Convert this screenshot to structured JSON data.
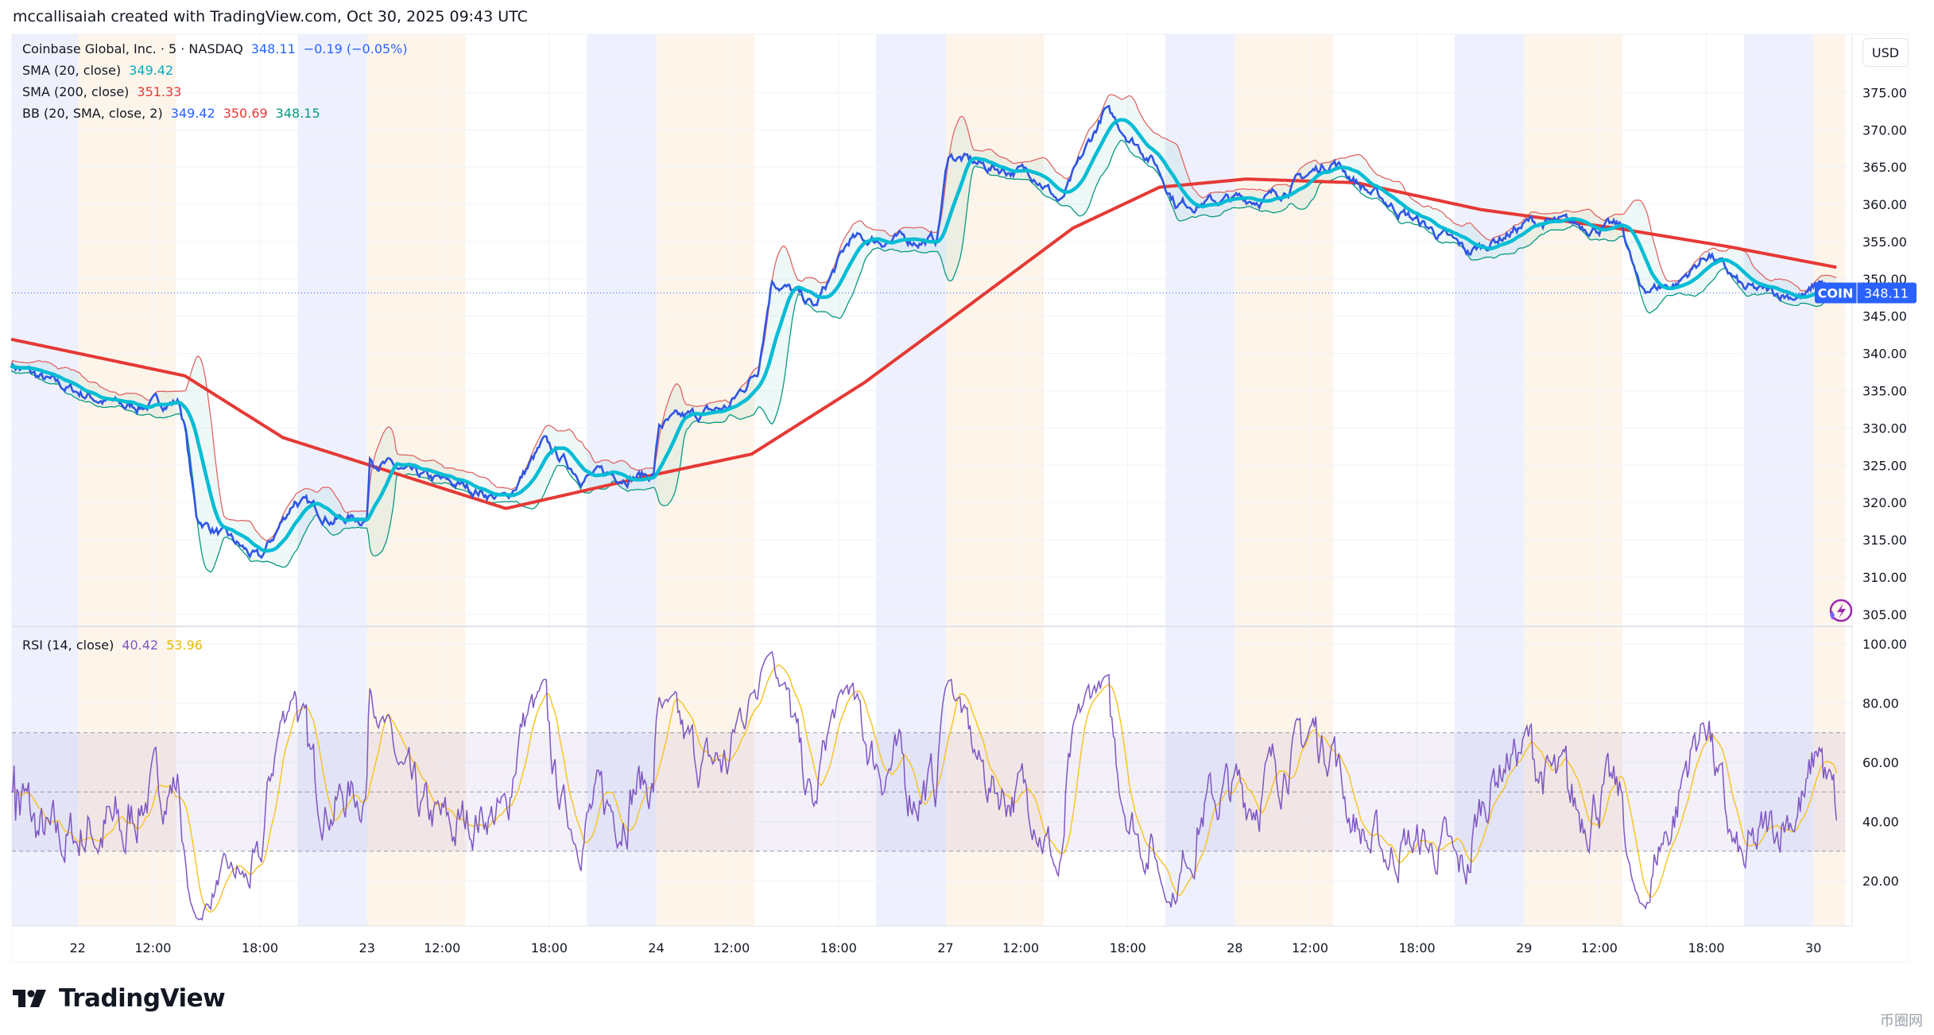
{
  "credit": "mccallisaiah created with TradingView.com, Oct 30, 2025 09:43 UTC",
  "legend": {
    "symbol": "Coinbase Global, Inc. · 5 · NASDAQ",
    "price": "348.11",
    "change": "−0.19 (−0.05%)",
    "sma20_label": "SMA (20, close)",
    "sma20_value": "349.42",
    "sma200_label": "SMA (200, close)",
    "sma200_value": "351.33",
    "bb_label": "BB (20, SMA, close, 2)",
    "bb_basis": "349.42",
    "bb_upper": "350.69",
    "bb_lower": "348.15",
    "rsi_label": "RSI (14, close)",
    "rsi_value": "40.42",
    "rsi_ma_value": "53.96"
  },
  "currency_button": "USD",
  "last_price_tag": {
    "ticker": "COIN",
    "price": "348.11"
  },
  "logo_text": "TradingView",
  "watermark": "币圈网",
  "colors": {
    "price": "#2f55e4",
    "sma20": "#00bcd4",
    "sma200": "#e53935",
    "bb_upper": "#e06666",
    "bb_lower": "#089981",
    "rsi": "#7e57c2",
    "rsi_ma": "#f5c52b",
    "premarket": "#eef1fd",
    "afterhours": "#fdf5ea",
    "tag": "#2962ff"
  },
  "chart_data": [
    {
      "type": "line",
      "title": "Coinbase Global, Inc. · 5 · NASDAQ",
      "x_unit": "trading days from Oct 22 open",
      "ylim": [
        302,
        378
      ],
      "y_ticks": [
        "375.00",
        "370.00",
        "365.00",
        "360.00",
        "355.00",
        "350.00",
        "345.00",
        "340.00",
        "335.00",
        "330.00",
        "325.00",
        "320.00",
        "315.00",
        "310.00",
        "305.00"
      ],
      "x_ticks": [
        {
          "label": "22",
          "x": 0
        },
        {
          "label": "12:00",
          "x": 0.26
        },
        {
          "label": "18:00",
          "x": 0.63
        },
        {
          "label": "23",
          "x": 1
        },
        {
          "label": "12:00",
          "x": 1.26
        },
        {
          "label": "18:00",
          "x": 1.63
        },
        {
          "label": "24",
          "x": 2
        },
        {
          "label": "12:00",
          "x": 2.26
        },
        {
          "label": "18:00",
          "x": 2.63
        },
        {
          "label": "27",
          "x": 3
        },
        {
          "label": "12:00",
          "x": 3.26
        },
        {
          "label": "18:00",
          "x": 3.63
        },
        {
          "label": "28",
          "x": 4
        },
        {
          "label": "12:00",
          "x": 4.26
        },
        {
          "label": "18:00",
          "x": 4.63
        },
        {
          "label": "29",
          "x": 5
        },
        {
          "label": "12:00",
          "x": 5.26
        },
        {
          "label": "18:00",
          "x": 5.63
        },
        {
          "label": "30",
          "x": 6
        }
      ],
      "xlim": [
        -0.23,
        6.11
      ],
      "series": [
        {
          "name": "Close",
          "points": [
            [
              -0.23,
              338.6
            ],
            [
              -0.1,
              336.1
            ],
            [
              0.16,
              332.8
            ],
            [
              0.35,
              333.6
            ],
            [
              0.37,
              330.3
            ],
            [
              0.41,
              317.9
            ],
            [
              0.48,
              316.2
            ],
            [
              0.63,
              312.1
            ],
            [
              0.75,
              320.4
            ],
            [
              0.88,
              317.9
            ],
            [
              1.0,
              317.9
            ],
            [
              1.01,
              326.2
            ],
            [
              1.14,
              323.7
            ],
            [
              1.35,
              322.0
            ],
            [
              1.48,
              320.4
            ],
            [
              1.61,
              327.8
            ],
            [
              1.74,
              323.7
            ],
            [
              1.99,
              323.7
            ],
            [
              2.01,
              330.3
            ],
            [
              2.25,
              332.8
            ],
            [
              2.35,
              337.8
            ],
            [
              2.4,
              350.2
            ],
            [
              2.55,
              346.1
            ],
            [
              2.67,
              355.2
            ],
            [
              2.97,
              355.2
            ],
            [
              3.01,
              366.7
            ],
            [
              3.14,
              365.0
            ],
            [
              3.31,
              364.2
            ],
            [
              3.4,
              360.1
            ],
            [
              3.55,
              372.5
            ],
            [
              3.72,
              365.9
            ],
            [
              3.8,
              360.1
            ],
            [
              4.12,
              360.9
            ],
            [
              4.34,
              365.9
            ],
            [
              4.46,
              361.8
            ],
            [
              4.81,
              353.5
            ],
            [
              5.02,
              357.6
            ],
            [
              5.34,
              356.8
            ],
            [
              5.4,
              348.5
            ],
            [
              5.53,
              349.4
            ],
            [
              5.64,
              353.5
            ],
            [
              5.76,
              348.5
            ],
            [
              5.98,
              347.7
            ],
            [
              6.02,
              349.7
            ],
            [
              6.08,
              348.11
            ]
          ]
        },
        {
          "name": "SMA (200, close)",
          "points": [
            [
              -0.23,
              341.9
            ],
            [
              0.37,
              337.0
            ],
            [
              0.71,
              328.7
            ],
            [
              1.48,
              319.2
            ],
            [
              1.99,
              323.7
            ],
            [
              2.33,
              326.5
            ],
            [
              2.72,
              336.1
            ],
            [
              3.01,
              344.4
            ],
            [
              3.44,
              356.8
            ],
            [
              3.74,
              362.3
            ],
            [
              4.04,
              363.4
            ],
            [
              4.42,
              362.9
            ],
            [
              4.85,
              359.3
            ],
            [
              5.32,
              356.8
            ],
            [
              5.71,
              354.3
            ],
            [
              6.11,
              351.33
            ]
          ]
        },
        {
          "name": "SMA (20, close)",
          "derived": "20-bar moving average of Close"
        },
        {
          "name": "BB (20, SMA, close, 2)",
          "derived": "SMA20 ± 2 stdev of Close"
        }
      ],
      "last_value": 348.11
    },
    {
      "type": "line",
      "title": "RSI (14, close)",
      "ylim": [
        8,
        102
      ],
      "y_ticks": [
        "100.00",
        "80.00",
        "60.00",
        "40.00",
        "20.00"
      ],
      "bands": {
        "upper": 70,
        "middle": 50,
        "lower": 30
      },
      "series": [
        {
          "name": "RSI",
          "derived": "14-period RSI of Close",
          "last_value": 40.42
        },
        {
          "name": "RSI-based MA",
          "derived": "14-period SMA of RSI",
          "last_value": 53.96
        }
      ]
    }
  ]
}
